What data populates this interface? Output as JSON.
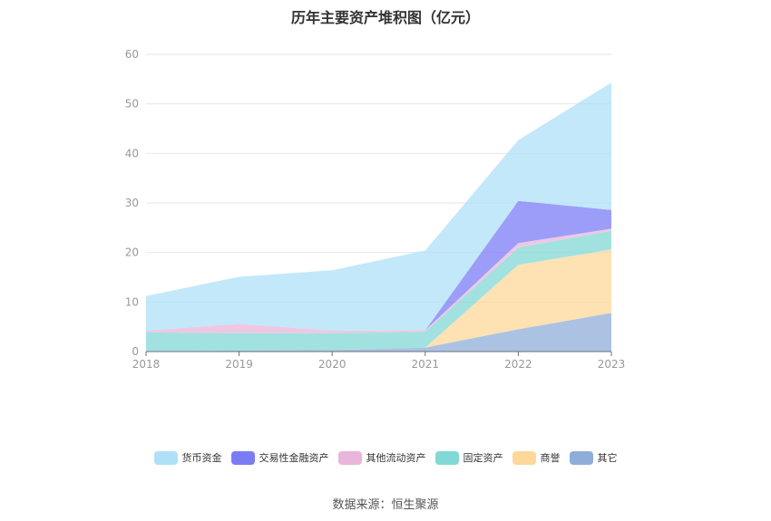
{
  "chart_data": {
    "type": "area",
    "title": "历年主要资产堆积图（亿元）",
    "x": [
      "2018",
      "2019",
      "2020",
      "2021",
      "2022",
      "2023"
    ],
    "ylim": [
      0,
      60
    ],
    "yticks": [
      0,
      10,
      20,
      30,
      40,
      50,
      60
    ],
    "stacked": true,
    "grid": true,
    "legend_position": "bottom",
    "series": [
      {
        "name": "其它",
        "color": "#8fadd9",
        "values": [
          0.1,
          0.2,
          0.3,
          0.8,
          4.5,
          7.8
        ]
      },
      {
        "name": "商誉",
        "color": "#fdd899",
        "values": [
          0,
          0,
          0,
          0,
          13.0,
          12.8
        ]
      },
      {
        "name": "固定资产",
        "color": "#82d8d6",
        "values": [
          3.8,
          3.5,
          3.4,
          3.2,
          3.5,
          3.8
        ]
      },
      {
        "name": "其他流动资产",
        "color": "#e8b6da",
        "values": [
          0.3,
          1.9,
          0.5,
          0.3,
          0.9,
          0.4
        ]
      },
      {
        "name": "交易性金融资产",
        "color": "#7b7cf5",
        "values": [
          0,
          0,
          0,
          0,
          8.5,
          3.8
        ]
      },
      {
        "name": "货币资金",
        "color": "#aee0f8",
        "values": [
          7.0,
          9.5,
          12.2,
          16.1,
          12.3,
          25.7
        ]
      }
    ],
    "legend_order": [
      "货币资金",
      "交易性金融资产",
      "其他流动资产",
      "固定资产",
      "商誉",
      "其它"
    ]
  },
  "source_note": "数据来源：恒生聚源"
}
